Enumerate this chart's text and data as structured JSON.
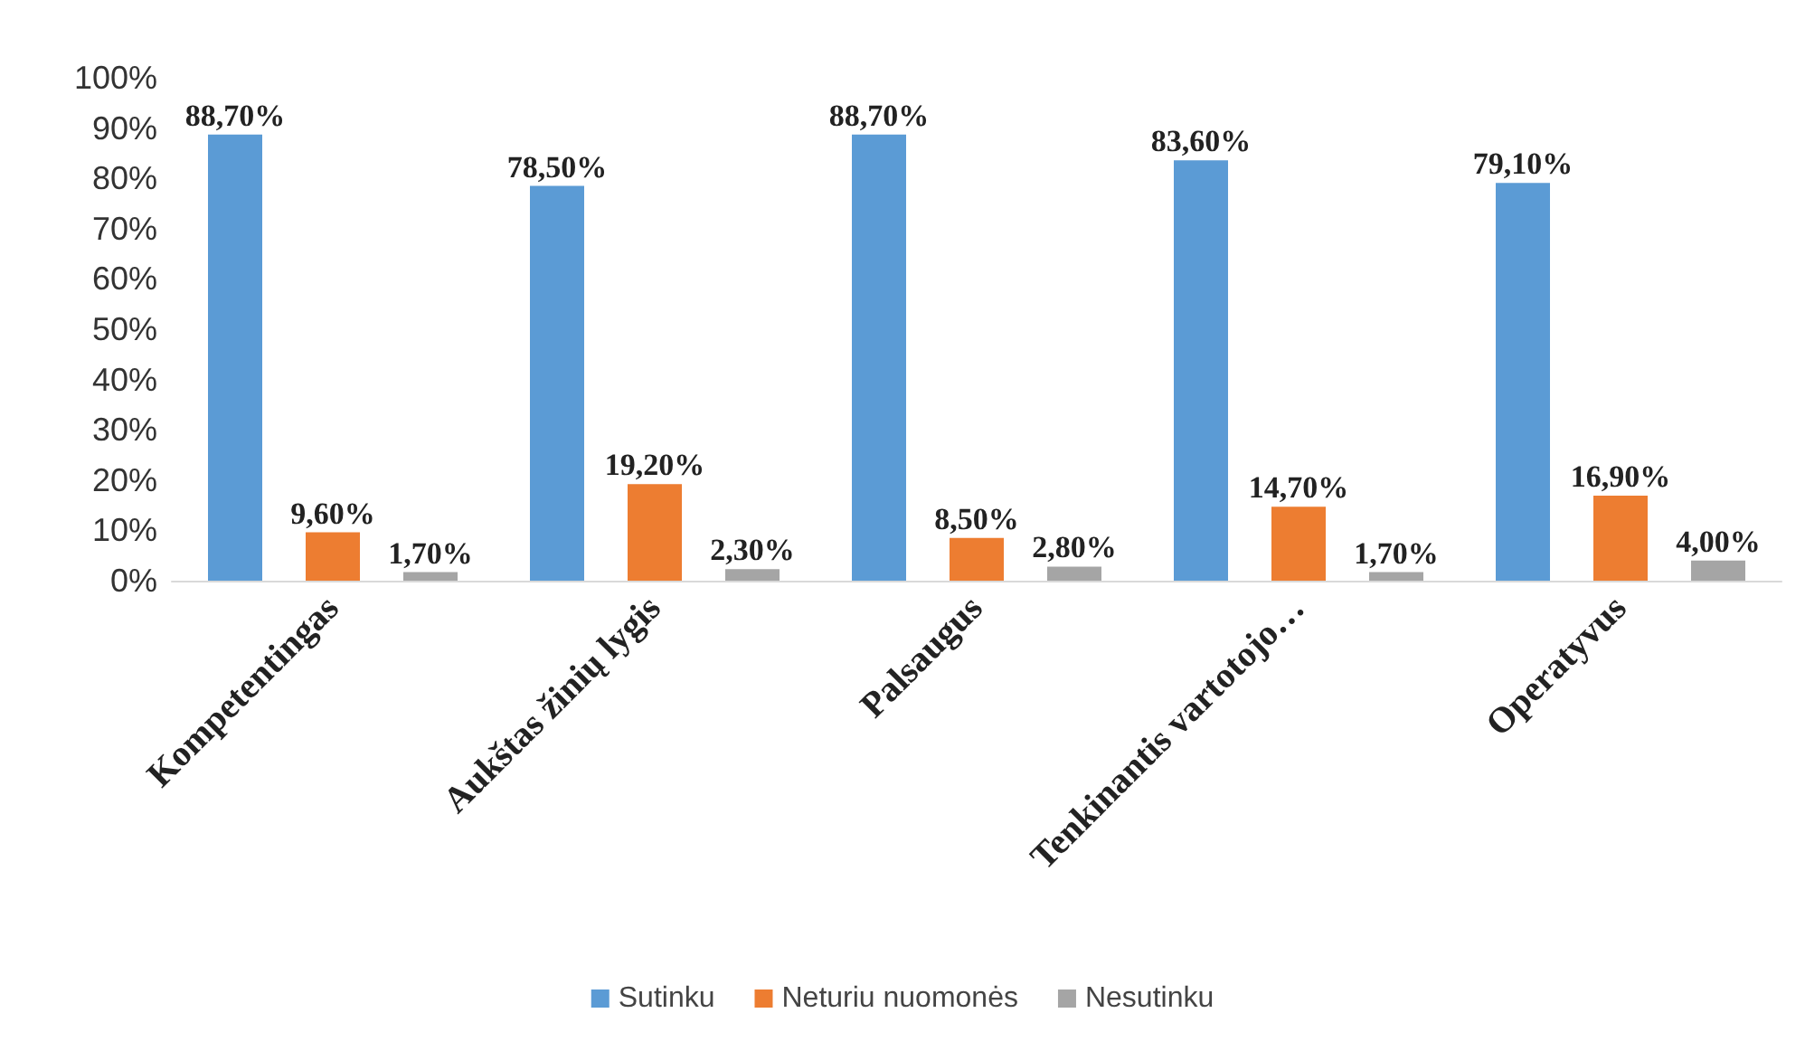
{
  "chart_data": {
    "type": "bar",
    "categories": [
      "Kompetentingas",
      "Aukštas žinių lygis",
      "Palsaugus",
      "Tenkinantis vartotojo…",
      "Operatyvus"
    ],
    "series": [
      {
        "name": "Sutinku",
        "color": "#5b9bd5",
        "values": [
          88.7,
          78.5,
          88.7,
          83.6,
          79.1
        ],
        "value_labels": [
          "88,70%",
          "78,50%",
          "88,70%",
          "83,60%",
          "79,10%"
        ]
      },
      {
        "name": "Neturiu nuomonės",
        "color": "#ed7d31",
        "values": [
          9.6,
          19.2,
          8.5,
          14.7,
          16.9
        ],
        "value_labels": [
          "9,60%",
          "19,20%",
          "8,50%",
          "14,70%",
          "16,90%"
        ]
      },
      {
        "name": "Nesutinku",
        "color": "#a5a5a5",
        "values": [
          1.7,
          2.3,
          2.8,
          1.7,
          4.0
        ],
        "value_labels": [
          "1,70%",
          "2,30%",
          "2,80%",
          "1,70%",
          "4,00%"
        ]
      }
    ],
    "ylim": [
      0,
      100
    ],
    "yticks": [
      {
        "value": 0,
        "label": "0%"
      },
      {
        "value": 10,
        "label": "10%"
      },
      {
        "value": 20,
        "label": "20%"
      },
      {
        "value": 30,
        "label": "30%"
      },
      {
        "value": 40,
        "label": "40%"
      },
      {
        "value": 50,
        "label": "50%"
      },
      {
        "value": 60,
        "label": "60%"
      },
      {
        "value": 70,
        "label": "70%"
      },
      {
        "value": 80,
        "label": "80%"
      },
      {
        "value": 90,
        "label": "90%"
      },
      {
        "value": 100,
        "label": "100%"
      }
    ],
    "grid": false,
    "legend": "bottom"
  }
}
